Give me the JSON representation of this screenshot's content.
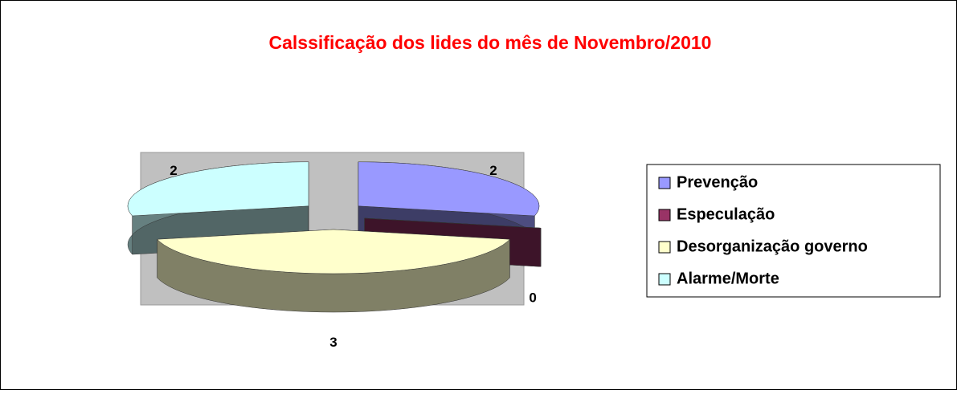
{
  "chart_data": {
    "type": "pie",
    "title": "Calssificação dos lides do mês de Novembro/2010",
    "categories": [
      "Prevenção",
      "Especulação",
      "Desorganização governo",
      "Alarme/Morte"
    ],
    "values": [
      2,
      0,
      3,
      2
    ],
    "colors": [
      "#9999ff",
      "#993366",
      "#ffffcc",
      "#ccffff"
    ],
    "legend": "right"
  }
}
